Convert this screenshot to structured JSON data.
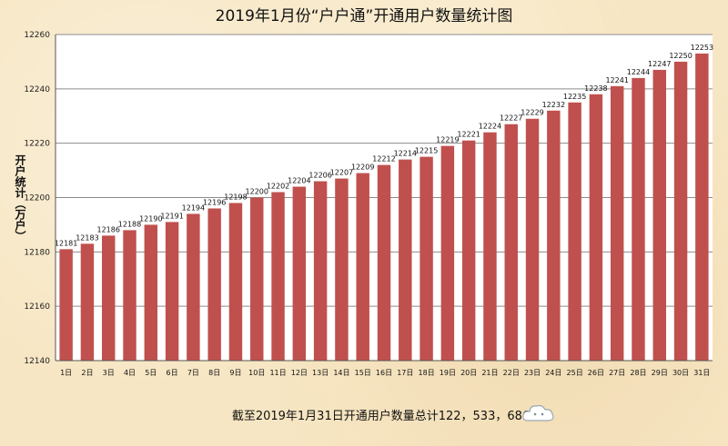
{
  "chart_data": {
    "type": "bar",
    "title": "2019年1月份“户户通”开通用户数量统计图",
    "ylabel": "开户统计（万户）",
    "xlabel": "",
    "ylim": [
      12140,
      12260
    ],
    "yticks": [
      12140,
      12160,
      12180,
      12200,
      12220,
      12240,
      12260
    ],
    "grid": true,
    "categories": [
      "1日",
      "2日",
      "3日",
      "4日",
      "5日",
      "6日",
      "7日",
      "8日",
      "9日",
      "10日",
      "11日",
      "12日",
      "13日",
      "14日",
      "15日",
      "16日",
      "17日",
      "18日",
      "19日",
      "20日",
      "21日",
      "22日",
      "23日",
      "24日",
      "25日",
      "26日",
      "27日",
      "28日",
      "29日",
      "30日",
      "31日"
    ],
    "values": [
      12181,
      12183,
      12186,
      12188,
      12190,
      12191,
      12194,
      12196,
      12198,
      12200,
      12202,
      12204,
      12206,
      12207,
      12209,
      12212,
      12214,
      12215,
      12219,
      12221,
      12224,
      12227,
      12229,
      12232,
      12235,
      12238,
      12241,
      12244,
      12247,
      12250,
      12253
    ],
    "bar_color": "#c0504d"
  },
  "footer_note": "截至2019年1月31日开通用户数量总计122，533，686户",
  "icons": {
    "cloud": "cloud-icon"
  }
}
